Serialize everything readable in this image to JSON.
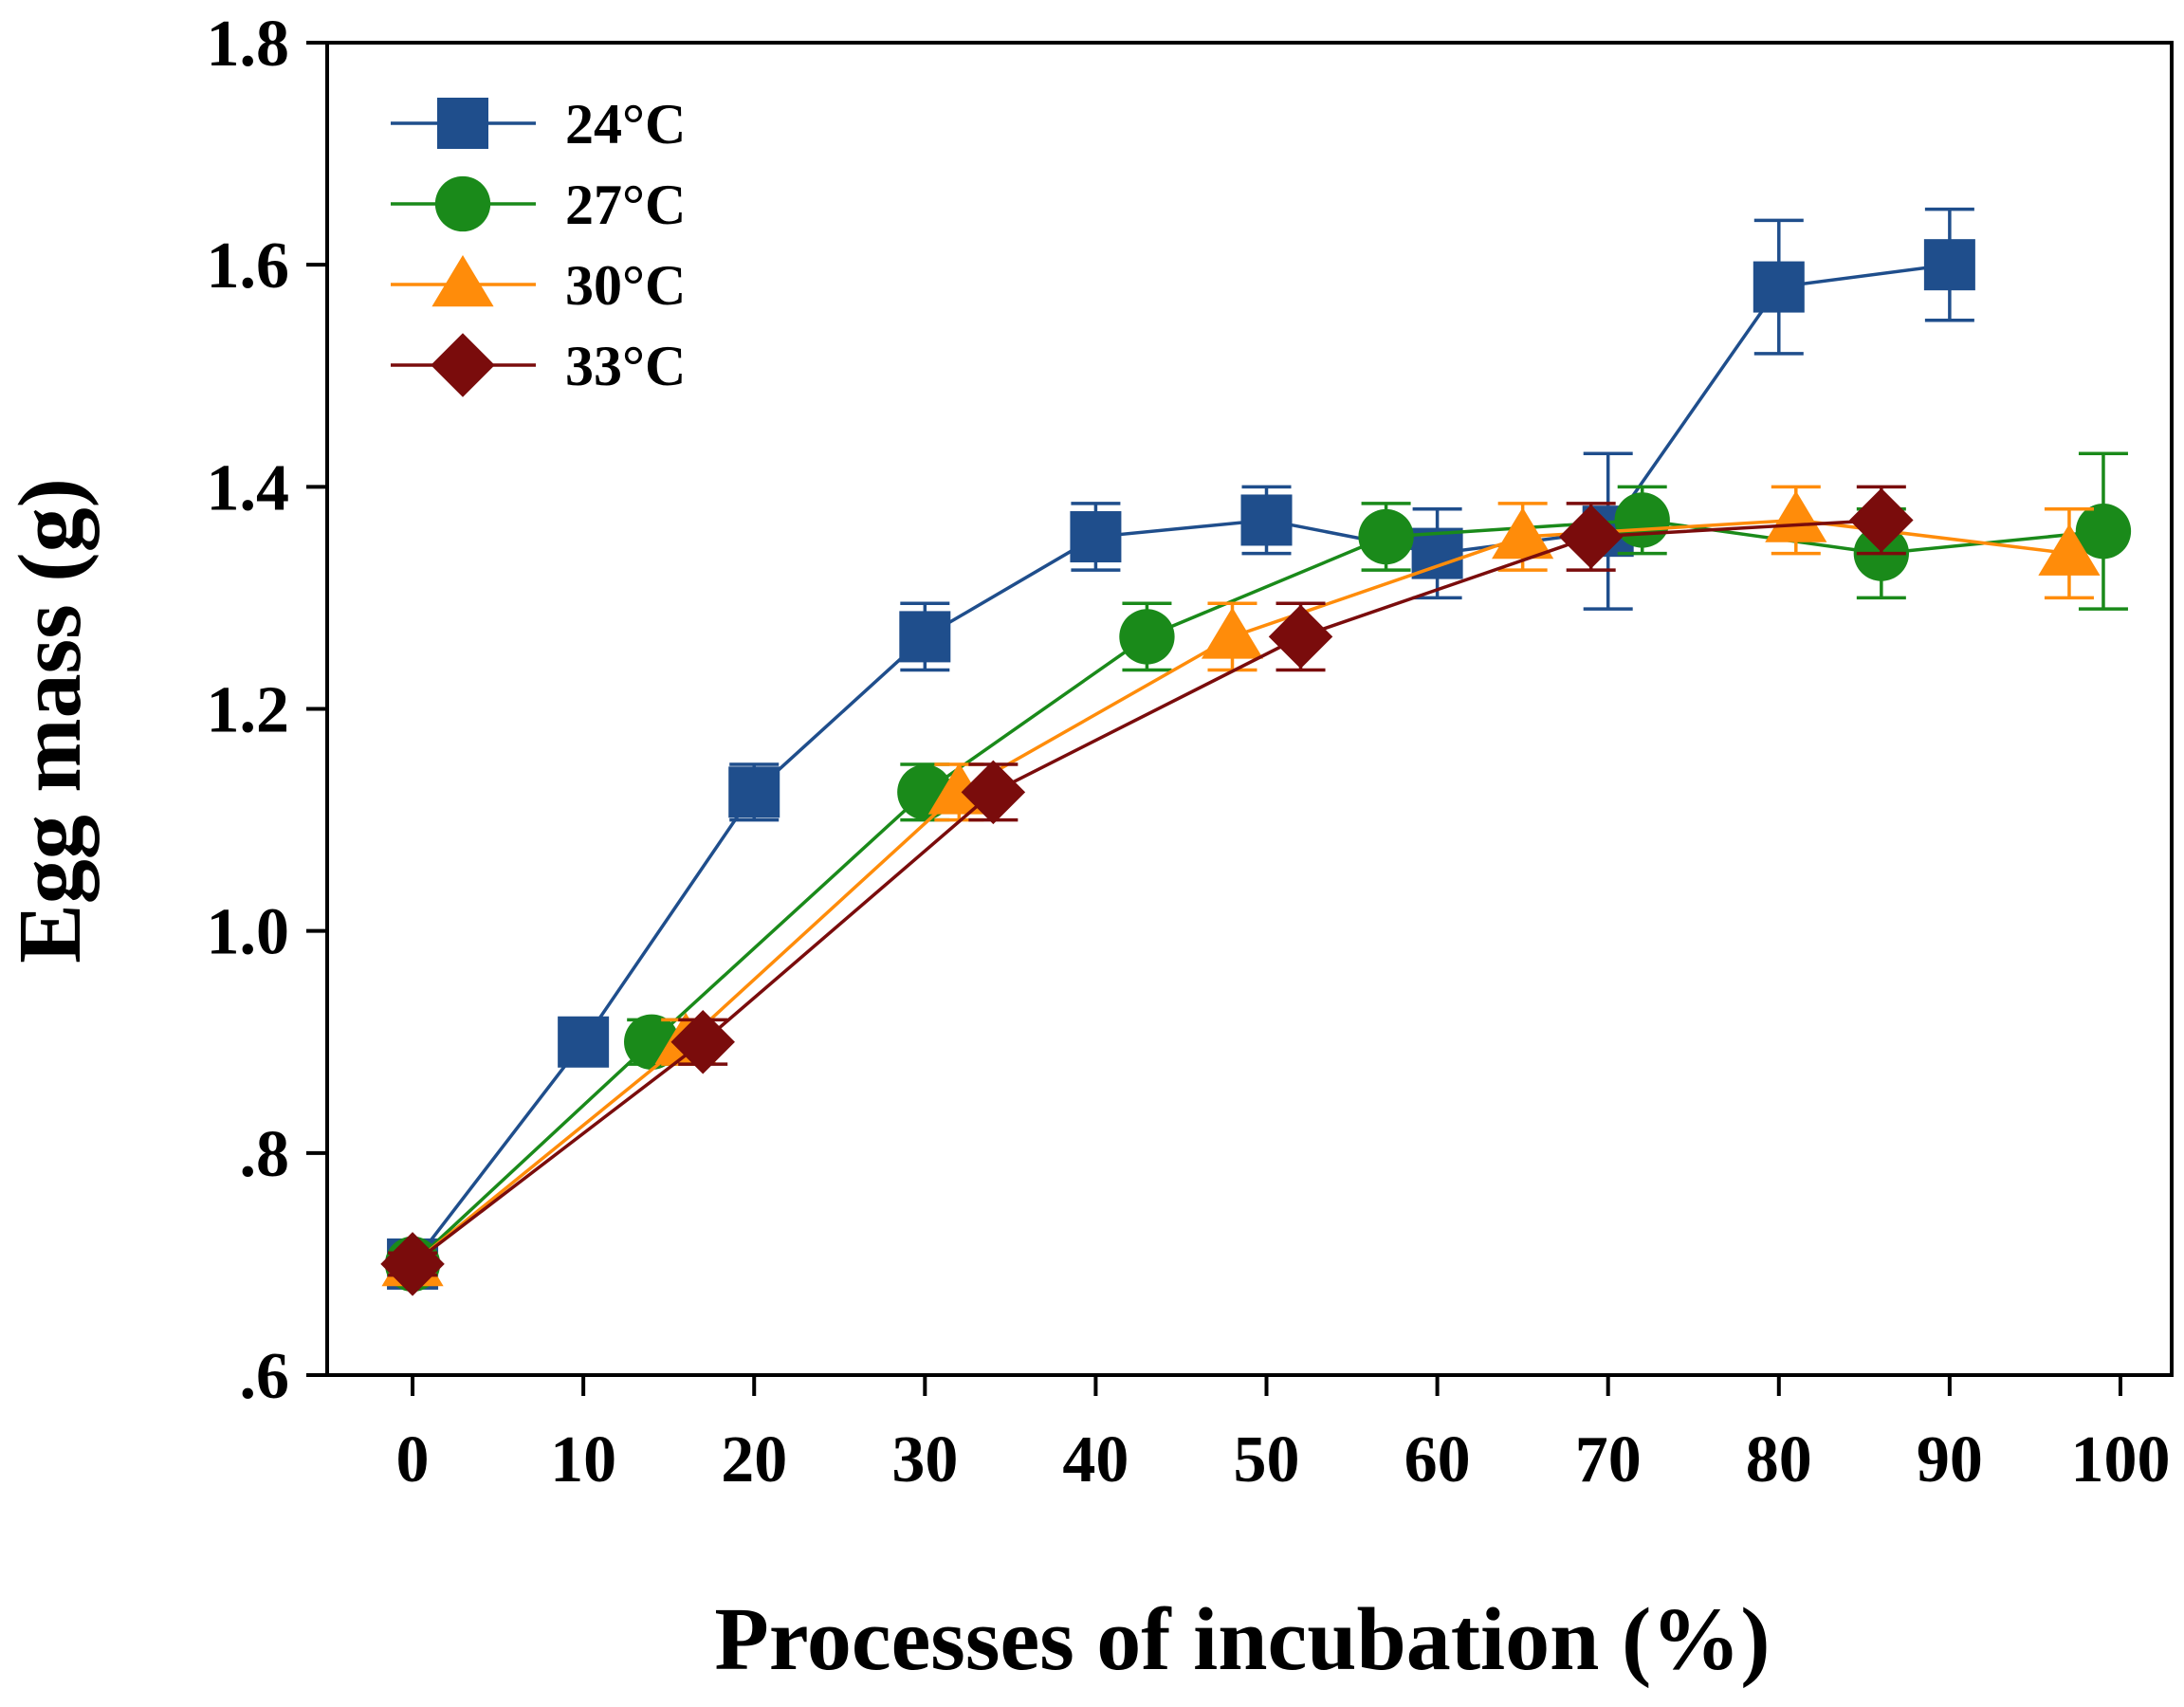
{
  "chart_data": {
    "type": "line",
    "xlabel": "Processes of incubation (%)",
    "ylabel": "Egg mass (g)",
    "xlim": [
      -5,
      103
    ],
    "ylim": [
      0.6,
      1.8
    ],
    "x_ticks": [
      0,
      10,
      20,
      30,
      40,
      50,
      60,
      70,
      80,
      90,
      100
    ],
    "x_tick_labels": [
      "0",
      "10",
      "20",
      "30",
      "40",
      "50",
      "60",
      "70",
      "80",
      "90",
      "100"
    ],
    "y_ticks": [
      0.6,
      0.8,
      1.0,
      1.2,
      1.4,
      1.6,
      1.8
    ],
    "y_tick_labels": [
      ".6",
      ".8",
      "1.0",
      "1.2",
      "1.4",
      "1.6",
      "1.8"
    ],
    "legend_position": "top-left",
    "series": [
      {
        "name": "24°C",
        "color": "#1f4e8c",
        "marker": "square",
        "x": [
          0,
          10,
          20,
          30,
          40,
          50,
          60,
          70,
          80,
          90
        ],
        "y": [
          0.7,
          0.9,
          1.125,
          1.265,
          1.355,
          1.37,
          1.34,
          1.36,
          1.58,
          1.6
        ],
        "err": [
          0.01,
          0.02,
          0.025,
          0.03,
          0.03,
          0.03,
          0.04,
          0.07,
          0.06,
          0.05
        ]
      },
      {
        "name": "27°C",
        "color": "#1a8a1a",
        "marker": "circle",
        "x": [
          0,
          14,
          30,
          43,
          57,
          72,
          86,
          99
        ],
        "y": [
          0.7,
          0.9,
          1.125,
          1.265,
          1.355,
          1.37,
          1.34,
          1.36
        ],
        "err": [
          0.01,
          0.02,
          0.025,
          0.03,
          0.03,
          0.03,
          0.04,
          0.07
        ]
      },
      {
        "name": "30°C",
        "color": "#ff8c0a",
        "marker": "triangle",
        "x": [
          0,
          16,
          32,
          48,
          65,
          81,
          97
        ],
        "y": [
          0.7,
          0.9,
          1.125,
          1.265,
          1.355,
          1.37,
          1.34
        ],
        "err": [
          0.01,
          0.02,
          0.025,
          0.03,
          0.03,
          0.03,
          0.04
        ]
      },
      {
        "name": "33°C",
        "color": "#7a0c0c",
        "marker": "diamond",
        "x": [
          0,
          17,
          34,
          52,
          69,
          86
        ],
        "y": [
          0.7,
          0.9,
          1.125,
          1.265,
          1.355,
          1.37
        ],
        "err": [
          0.01,
          0.02,
          0.025,
          0.03,
          0.03,
          0.03
        ]
      }
    ]
  }
}
